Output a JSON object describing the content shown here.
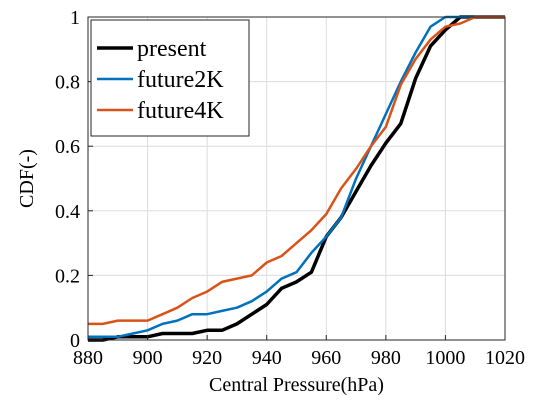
{
  "chart_data": {
    "type": "line",
    "xlabel": "Central Pressure(hPa)",
    "ylabel": "CDF(-)",
    "xlim": [
      880,
      1020
    ],
    "ylim": [
      0,
      1
    ],
    "xticks": [
      880,
      900,
      920,
      940,
      960,
      980,
      1000,
      1020
    ],
    "yticks": [
      0,
      0.2,
      0.4,
      0.6,
      0.8,
      1
    ],
    "ytick_labels": [
      "0",
      "0.2",
      "0.4",
      "0.6",
      "0.8",
      "1"
    ],
    "grid": true,
    "legend_position": "top-left",
    "series": [
      {
        "name": "present",
        "color": "#000000",
        "points": [
          [
            880,
            0.0
          ],
          [
            885,
            0.0
          ],
          [
            890,
            0.01
          ],
          [
            900,
            0.01
          ],
          [
            905,
            0.02
          ],
          [
            915,
            0.02
          ],
          [
            920,
            0.03
          ],
          [
            925,
            0.03
          ],
          [
            930,
            0.05
          ],
          [
            935,
            0.08
          ],
          [
            940,
            0.11
          ],
          [
            945,
            0.16
          ],
          [
            950,
            0.18
          ],
          [
            955,
            0.21
          ],
          [
            960,
            0.32
          ],
          [
            965,
            0.38
          ],
          [
            970,
            0.46
          ],
          [
            975,
            0.54
          ],
          [
            980,
            0.61
          ],
          [
            985,
            0.67
          ],
          [
            990,
            0.81
          ],
          [
            995,
            0.91
          ],
          [
            1000,
            0.96
          ],
          [
            1005,
            1.0
          ],
          [
            1010,
            1.0
          ],
          [
            1020,
            1.0
          ]
        ]
      },
      {
        "name": "future2K",
        "color": "#0072BD",
        "points": [
          [
            880,
            0.01
          ],
          [
            890,
            0.01
          ],
          [
            900,
            0.03
          ],
          [
            905,
            0.05
          ],
          [
            910,
            0.06
          ],
          [
            915,
            0.08
          ],
          [
            920,
            0.08
          ],
          [
            925,
            0.09
          ],
          [
            930,
            0.1
          ],
          [
            935,
            0.12
          ],
          [
            940,
            0.15
          ],
          [
            945,
            0.19
          ],
          [
            950,
            0.21
          ],
          [
            955,
            0.27
          ],
          [
            960,
            0.32
          ],
          [
            965,
            0.38
          ],
          [
            970,
            0.5
          ],
          [
            975,
            0.6
          ],
          [
            980,
            0.7
          ],
          [
            985,
            0.8
          ],
          [
            990,
            0.89
          ],
          [
            995,
            0.97
          ],
          [
            1000,
            1.0
          ],
          [
            1020,
            1.0
          ]
        ]
      },
      {
        "name": "future4K",
        "color": "#D95319",
        "points": [
          [
            880,
            0.05
          ],
          [
            885,
            0.05
          ],
          [
            890,
            0.06
          ],
          [
            900,
            0.06
          ],
          [
            905,
            0.08
          ],
          [
            910,
            0.1
          ],
          [
            915,
            0.13
          ],
          [
            920,
            0.15
          ],
          [
            925,
            0.18
          ],
          [
            930,
            0.19
          ],
          [
            935,
            0.2
          ],
          [
            940,
            0.24
          ],
          [
            945,
            0.26
          ],
          [
            950,
            0.3
          ],
          [
            955,
            0.34
          ],
          [
            960,
            0.39
          ],
          [
            965,
            0.47
          ],
          [
            970,
            0.53
          ],
          [
            975,
            0.6
          ],
          [
            980,
            0.66
          ],
          [
            985,
            0.79
          ],
          [
            990,
            0.87
          ],
          [
            995,
            0.93
          ],
          [
            1000,
            0.97
          ],
          [
            1005,
            0.98
          ],
          [
            1010,
            1.0
          ],
          [
            1020,
            1.0
          ]
        ]
      }
    ]
  }
}
